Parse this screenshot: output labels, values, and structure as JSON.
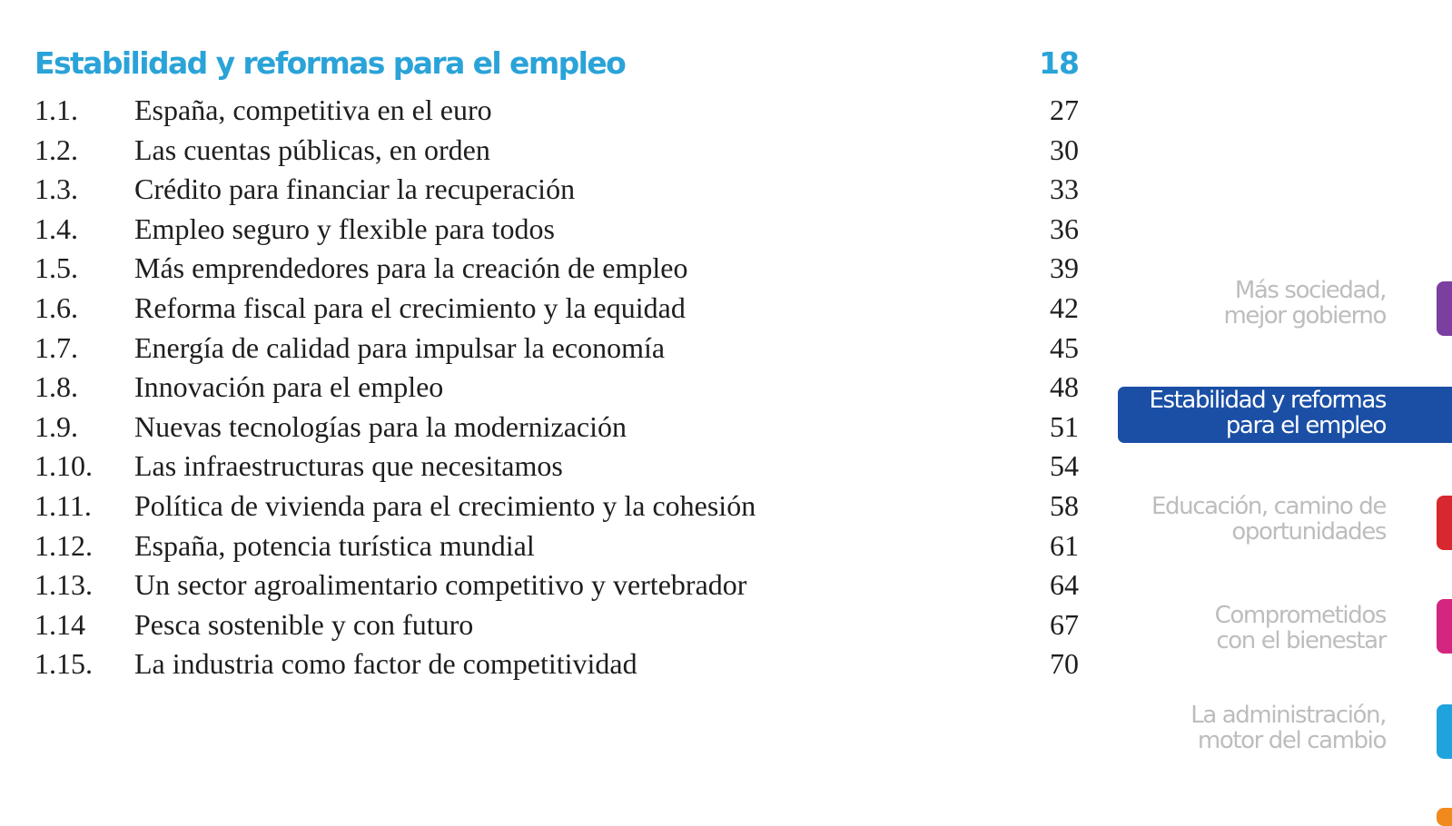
{
  "toc": {
    "title": "Estabilidad y reformas para el empleo",
    "title_page": "18",
    "entries": [
      {
        "num": "1.1.",
        "text": "España, competitiva en el euro",
        "page": "27"
      },
      {
        "num": "1.2.",
        "text": "Las cuentas públicas, en orden",
        "page": "30"
      },
      {
        "num": "1.3.",
        "text": "Crédito para financiar la recuperación",
        "page": "33"
      },
      {
        "num": "1.4.",
        "text": "Empleo seguro y flexible para todos",
        "page": "36"
      },
      {
        "num": "1.5.",
        "text": "Más emprendedores para la creación de empleo",
        "page": "39"
      },
      {
        "num": "1.6.",
        "text": "Reforma fiscal para el crecimiento y la equidad",
        "page": "42"
      },
      {
        "num": "1.7.",
        "text": "Energía de calidad para impulsar la economía",
        "page": "45"
      },
      {
        "num": "1.8.",
        "text": "Innovación para el empleo",
        "page": "48"
      },
      {
        "num": "1.9.",
        "text": "Nuevas tecnologías para la modernización",
        "page": "51"
      },
      {
        "num": "1.10.",
        "text": "Las infraestructuras que necesitamos",
        "page": "54"
      },
      {
        "num": "1.11.",
        "text": "Política de vivienda para el crecimiento y la cohesión",
        "page": "58"
      },
      {
        "num": "1.12.",
        "text": "España, potencia turística mundial",
        "page": "61"
      },
      {
        "num": "1.13.",
        "text": "Un sector agroalimentario competitivo y vertebrador",
        "page": "64"
      },
      {
        "num": "1.14",
        "text": "Pesca sostenible y con futuro",
        "page": "67"
      },
      {
        "num": "1.15.",
        "text": "La industria como factor de competitividad",
        "page": "70"
      }
    ]
  },
  "side_nav": {
    "items": [
      {
        "line1": "Más sociedad,",
        "line2": "mejor gobierno",
        "tab_color": "#7b3fa0"
      },
      {
        "line1": "Estabilidad y reformas",
        "line2": "para el empleo",
        "active": true,
        "bg_color": "#1b4fa6"
      },
      {
        "line1": "Educación, camino de",
        "line2": "oportunidades",
        "tab_color": "#d7282f"
      },
      {
        "line1": "Comprometidos",
        "line2": "con el bienestar",
        "tab_color": "#d4267f"
      },
      {
        "line1": "La administración,",
        "line2": "motor del cambio",
        "tab_color": "#1fa3dc"
      },
      {
        "tab_color": "#f08a1c"
      }
    ]
  }
}
